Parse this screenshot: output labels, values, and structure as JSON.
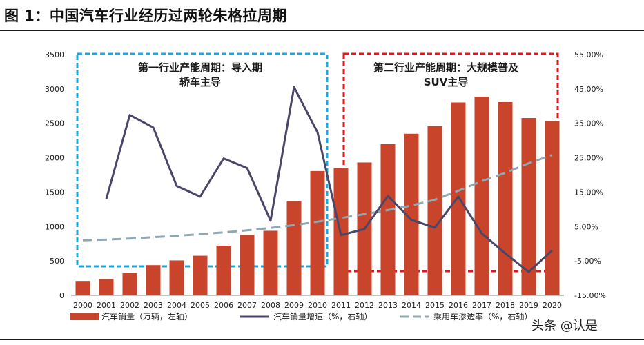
{
  "figure": {
    "title": "图 1：中国汽车行业经历过两轮朱格拉周期",
    "watermark": "头条 @认是"
  },
  "colors": {
    "bar": "#c8442a",
    "growth_line": "#4a4668",
    "penetration_line": "#8fa8b4",
    "box1": "#1aa8e0",
    "box2": "#e8141c"
  },
  "annotations": [
    {
      "id": "box1",
      "lines": [
        "第一行业产能周期：导入期",
        "轿车主导"
      ]
    },
    {
      "id": "box2",
      "lines": [
        "第二行业产能周期：大规模普及",
        "SUV主导"
      ]
    }
  ],
  "chart_data": {
    "type": "bar",
    "categories": [
      "2000",
      "2001",
      "2002",
      "2003",
      "2004",
      "2005",
      "2006",
      "2007",
      "2008",
      "2009",
      "2010",
      "2011",
      "2012",
      "2013",
      "2014",
      "2015",
      "2016",
      "2017",
      "2018",
      "2019",
      "2020"
    ],
    "series": [
      {
        "name": "汽车销量（万辆，左轴）",
        "type": "bar",
        "axis": "left",
        "values": [
          209,
          237,
          325,
          439,
          507,
          576,
          722,
          879,
          938,
          1364,
          1806,
          1851,
          1931,
          2198,
          2349,
          2460,
          2803,
          2888,
          2808,
          2577,
          2531
        ]
      },
      {
        "name": "汽车销量增速（%，右轴）",
        "type": "line",
        "axis": "right",
        "values": [
          null,
          13.0,
          37.4,
          33.8,
          16.8,
          13.7,
          24.8,
          22.0,
          6.7,
          45.5,
          32.4,
          2.5,
          4.3,
          13.9,
          6.9,
          4.7,
          13.7,
          3.0,
          -2.8,
          -8.2,
          -1.9
        ]
      },
      {
        "name": "乘用车渗透率（%，右轴）",
        "type": "line",
        "axis": "right",
        "dashed": true,
        "values": [
          1.0,
          1.2,
          1.5,
          1.9,
          2.3,
          2.8,
          3.3,
          3.9,
          4.6,
          5.4,
          6.4,
          7.5,
          8.6,
          9.8,
          11.1,
          12.8,
          15.4,
          18.2,
          20.6,
          23.4,
          25.8
        ]
      }
    ],
    "y_left": {
      "min": 0,
      "max": 3500,
      "ticks": [
        "0",
        "500",
        "1000",
        "1500",
        "2000",
        "2500",
        "3000",
        "3500"
      ]
    },
    "y_right": {
      "min": -15,
      "max": 55,
      "ticks": [
        "-15.00%",
        "-5.00%",
        "5.00%",
        "15.00%",
        "25.00%",
        "35.00%",
        "45.00%",
        "55.00%"
      ]
    },
    "legend_position": "bottom",
    "grid": false
  }
}
